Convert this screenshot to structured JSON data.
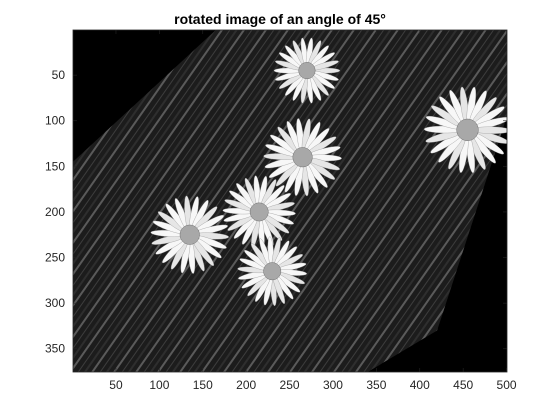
{
  "figure": {
    "title": "rotated image of an angle of 45°",
    "background_color": "#ffffff",
    "image_background_color": "#000000",
    "image_description_note": ""
  },
  "axes": {
    "xlim": [
      0.5,
      500.5
    ],
    "ylim": [
      0.5,
      375.5
    ],
    "y_direction": "reverse",
    "xticks": [
      50,
      100,
      150,
      200,
      250,
      300,
      350,
      400,
      450,
      500
    ],
    "yticks": [
      50,
      100,
      150,
      200,
      250,
      300,
      350
    ],
    "xtick_labels": [
      "50",
      "100",
      "150",
      "200",
      "250",
      "300",
      "350",
      "400",
      "450",
      "500"
    ],
    "ytick_labels": [
      "50",
      "100",
      "150",
      "200",
      "250",
      "300",
      "350"
    ],
    "axis_color": "#262626"
  },
  "image": {
    "type": "grayscale photo rotated 45 degrees",
    "rotated_outline_data_units": [
      [
        165,
        0.5
      ],
      [
        500.5,
        0.5
      ],
      [
        500.5,
        95
      ],
      [
        420,
        330
      ],
      [
        340,
        375.5
      ],
      [
        0.5,
        375.5
      ],
      [
        0.5,
        145
      ]
    ],
    "flowers": [
      {
        "cx": 270,
        "cy": 45,
        "r": 38
      },
      {
        "cx": 455,
        "cy": 110,
        "r": 50
      },
      {
        "cx": 265,
        "cy": 140,
        "r": 45
      },
      {
        "cx": 215,
        "cy": 200,
        "r": 42
      },
      {
        "cx": 135,
        "cy": 225,
        "r": 45
      },
      {
        "cx": 230,
        "cy": 265,
        "r": 40
      }
    ]
  }
}
